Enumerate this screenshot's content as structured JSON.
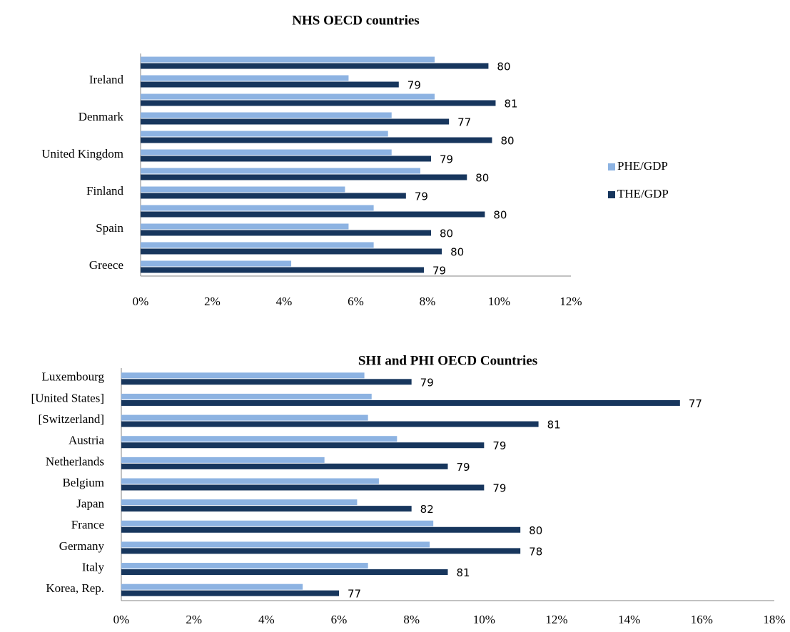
{
  "chart_data": [
    {
      "type": "bar",
      "orientation": "horizontal",
      "title": "NHS OECD countries",
      "categories": [
        null,
        "Ireland",
        null,
        "Denmark",
        null,
        "United Kingdom",
        null,
        "Finland",
        null,
        "Spain",
        null,
        "Greece"
      ],
      "series": [
        {
          "name": "PHE/GDP",
          "color": "#8db3e2",
          "values": [
            8.2,
            5.8,
            8.2,
            7.0,
            6.9,
            7.0,
            7.8,
            5.7,
            6.5,
            5.8,
            6.5,
            4.2
          ]
        },
        {
          "name": "THE/GDP",
          "color": "#17365d",
          "values": [
            9.7,
            7.2,
            9.9,
            8.6,
            9.8,
            8.1,
            9.1,
            7.4,
            9.6,
            8.1,
            8.4,
            7.9
          ]
        }
      ],
      "bar_labels": [
        80,
        79,
        81,
        77,
        80,
        79,
        80,
        79,
        80,
        80,
        80,
        79
      ],
      "xlim": [
        0,
        12
      ],
      "xticks": [
        {
          "value": 0,
          "label": "0%"
        },
        {
          "value": 2,
          "label": "2%"
        },
        {
          "value": 4,
          "label": "4%"
        },
        {
          "value": 6,
          "label": "6%"
        },
        {
          "value": 8,
          "label": "8%"
        },
        {
          "value": 10,
          "label": "10%"
        },
        {
          "value": 12,
          "label": "12%"
        }
      ],
      "legend": "right",
      "grid": false
    },
    {
      "type": "bar",
      "orientation": "horizontal",
      "title": "SHI  and PHI OECD Countries",
      "categories": [
        "Luxembourg",
        "[United States]",
        "[Switzerland]",
        "Austria",
        "Netherlands",
        "Belgium",
        "Japan",
        "France",
        "Germany",
        "Italy",
        "Korea, Rep."
      ],
      "series": [
        {
          "color": "#8db3e2",
          "values": [
            6.7,
            6.9,
            6.8,
            7.6,
            5.6,
            7.1,
            6.5,
            8.6,
            8.5,
            6.8,
            5.0
          ]
        },
        {
          "color": "#17365d",
          "values": [
            8.0,
            15.4,
            11.5,
            10.0,
            9.0,
            10.0,
            8.0,
            11.0,
            11.0,
            9.0,
            6.0
          ]
        }
      ],
      "bar_labels": [
        79,
        77,
        81,
        79,
        79,
        79,
        82,
        80,
        78,
        81,
        77
      ],
      "xlim": [
        0,
        18
      ],
      "xticks": [
        {
          "value": 0,
          "label": "0%"
        },
        {
          "value": 2,
          "label": "2%"
        },
        {
          "value": 4,
          "label": "4%"
        },
        {
          "value": 6,
          "label": "6%"
        },
        {
          "value": 8,
          "label": "8%"
        },
        {
          "value": 10,
          "label": "10%"
        },
        {
          "value": 12,
          "label": "12%"
        },
        {
          "value": 14,
          "label": "14%"
        },
        {
          "value": 16,
          "label": "16%"
        },
        {
          "value": 18,
          "label": "18%"
        }
      ],
      "legend": null,
      "grid": false
    }
  ]
}
